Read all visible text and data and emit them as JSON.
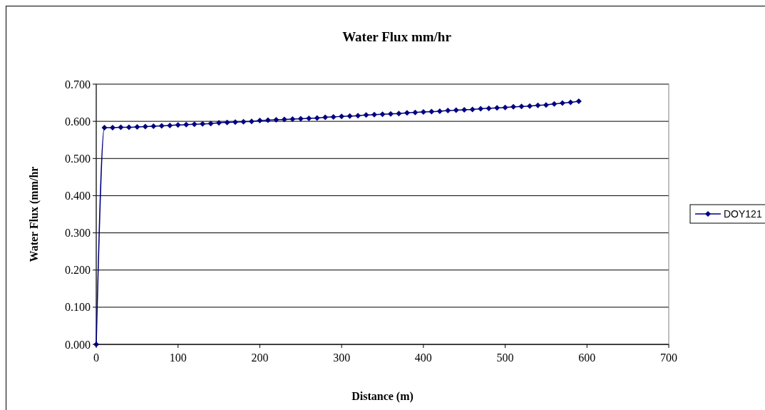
{
  "chart_data": {
    "type": "line",
    "title": "Water Flux mm/hr",
    "xlabel": "Distance  (m)",
    "ylabel": "Water Flux (mm/hr",
    "x": [
      0,
      10,
      20,
      30,
      40,
      50,
      60,
      70,
      80,
      90,
      100,
      110,
      120,
      130,
      140,
      150,
      160,
      170,
      180,
      190,
      200,
      210,
      220,
      230,
      240,
      250,
      260,
      270,
      280,
      290,
      300,
      310,
      320,
      330,
      340,
      350,
      360,
      370,
      380,
      390,
      400,
      410,
      420,
      430,
      440,
      450,
      460,
      470,
      480,
      490,
      500,
      510,
      520,
      530,
      540,
      550,
      560,
      570,
      580,
      590
    ],
    "series": [
      {
        "name": "DOY121",
        "color": "#000080",
        "values": [
          0,
          0.583,
          0.583,
          0.584,
          0.584,
          0.585,
          0.586,
          0.587,
          0.588,
          0.589,
          0.59,
          0.591,
          0.592,
          0.593,
          0.594,
          0.596,
          0.597,
          0.598,
          0.599,
          0.6,
          0.602,
          0.603,
          0.604,
          0.605,
          0.606,
          0.607,
          0.608,
          0.609,
          0.611,
          0.612,
          0.613,
          0.614,
          0.615,
          0.617,
          0.618,
          0.619,
          0.62,
          0.621,
          0.623,
          0.624,
          0.625,
          0.626,
          0.627,
          0.629,
          0.63,
          0.631,
          0.632,
          0.634,
          0.635,
          0.636,
          0.637,
          0.639,
          0.64,
          0.641,
          0.643,
          0.644,
          0.647,
          0.649,
          0.651,
          0.654
        ]
      }
    ],
    "xlim": [
      0,
      700
    ],
    "xticks": [
      0,
      100,
      200,
      300,
      400,
      500,
      600,
      700
    ],
    "ylim": [
      0,
      0.7
    ],
    "yticks": [
      {
        "value": 0,
        "label": "0.000"
      },
      {
        "value": 0.1,
        "label": "0.100"
      },
      {
        "value": 0.2,
        "label": "0.200"
      },
      {
        "value": 0.3,
        "label": "0.300"
      },
      {
        "value": 0.4,
        "label": "0.400"
      },
      {
        "value": 0.5,
        "label": "0.500"
      },
      {
        "value": 0.6,
        "label": "0.600"
      },
      {
        "value": 0.7,
        "label": "0.700"
      }
    ],
    "grid": "y",
    "legend": "right",
    "marker": "diamond",
    "line_style": "solid"
  }
}
